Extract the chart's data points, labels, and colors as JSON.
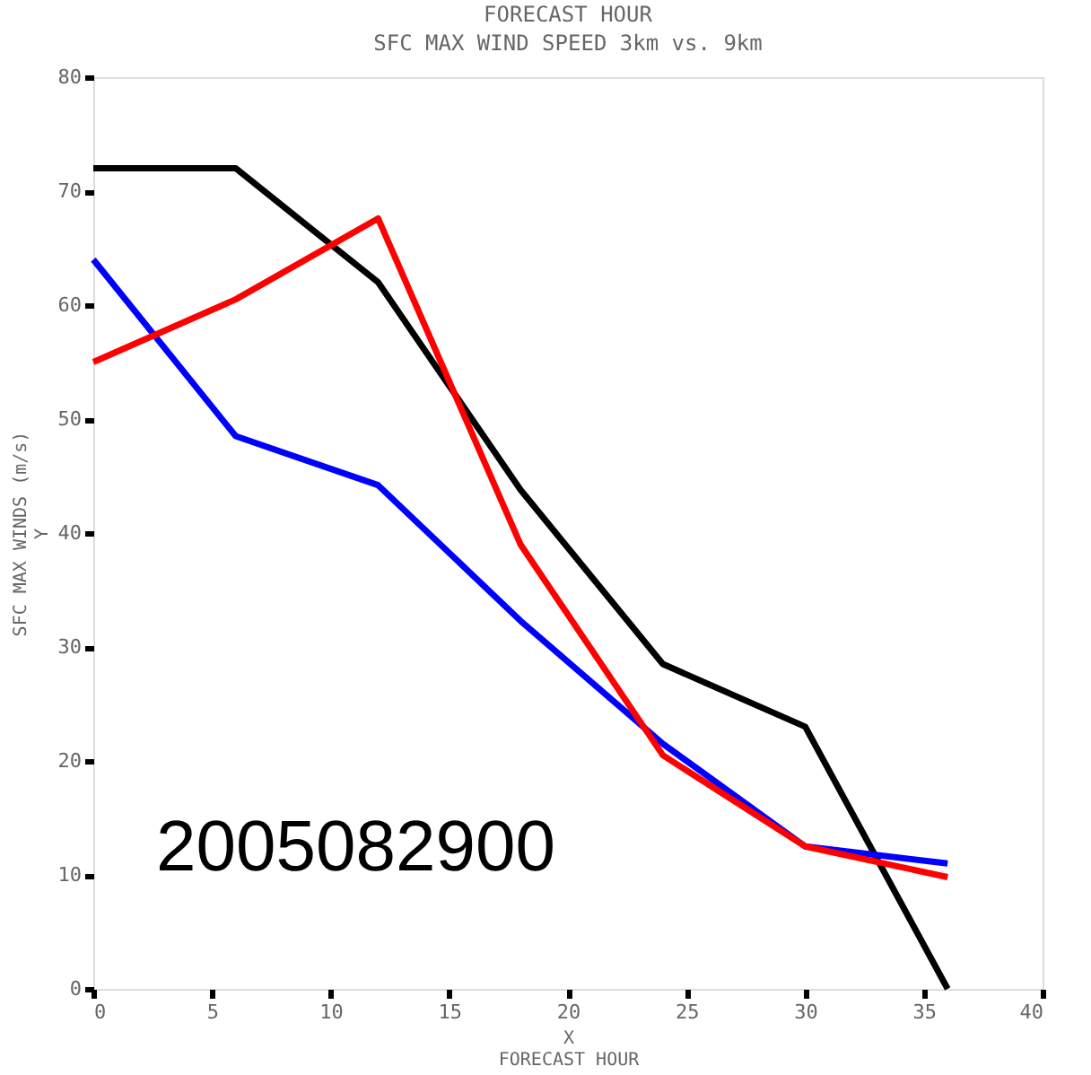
{
  "chart_data": {
    "type": "line",
    "title": "SFC MAX WIND SPEED 3km vs. 9km",
    "xlabel": "X\nFORECAST HOUR",
    "ylabel": "SFC MAX WINDS (m/s)\nY",
    "annotations": [
      "FORECAST HOUR",
      "2005082900"
    ],
    "x": [
      0,
      6,
      12,
      18,
      24,
      30,
      36
    ],
    "series": [
      {
        "color": "#000000",
        "values": [
          72,
          72,
          62,
          43.8,
          28.5,
          23,
          0
        ]
      },
      {
        "color": "#0000ff",
        "values": [
          64,
          48.5,
          44.2,
          32.3,
          21.5,
          12.5,
          11
        ]
      },
      {
        "color": "#ff0000",
        "values": [
          55,
          60.5,
          67.6,
          39,
          20.5,
          12.5,
          9.8
        ]
      }
    ],
    "xlim": [
      0,
      40
    ],
    "xticks": [
      0,
      5,
      10,
      15,
      20,
      25,
      30,
      35,
      40
    ],
    "ylim": [
      0,
      80
    ],
    "yticks": [
      0,
      10,
      20,
      30,
      40,
      50,
      60,
      70,
      80
    ],
    "grid": false,
    "legend": false,
    "marker": "none",
    "line_style": "solid"
  }
}
